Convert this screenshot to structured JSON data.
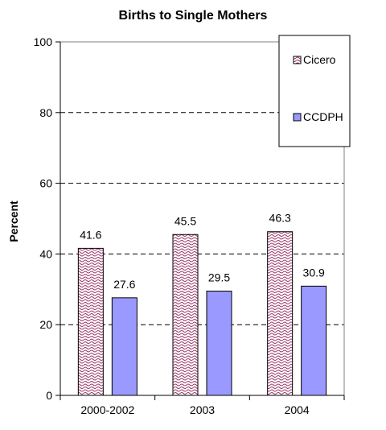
{
  "chart_data": {
    "type": "bar",
    "title": "Births to Single Mothers",
    "ylabel": "Percent",
    "xlabel": "",
    "categories": [
      "2000-2002",
      "2003",
      "2004"
    ],
    "ylim": [
      0,
      100
    ],
    "yticks": [
      0,
      20,
      40,
      60,
      80,
      100
    ],
    "grid": "dashed horizontal at 20, 40, 60, 80",
    "legend_position": "top-right",
    "series": [
      {
        "name": "Cicero",
        "values": [
          41.6,
          45.5,
          46.3
        ],
        "labels": [
          "41.6",
          "45.5",
          "46.3"
        ],
        "color": "#993366",
        "pattern": "wave"
      },
      {
        "name": "CCDPH",
        "values": [
          27.6,
          29.5,
          30.9
        ],
        "labels": [
          "27.6",
          "29.5",
          "30.9"
        ],
        "color": "#9999ff",
        "pattern": "solid"
      }
    ]
  }
}
